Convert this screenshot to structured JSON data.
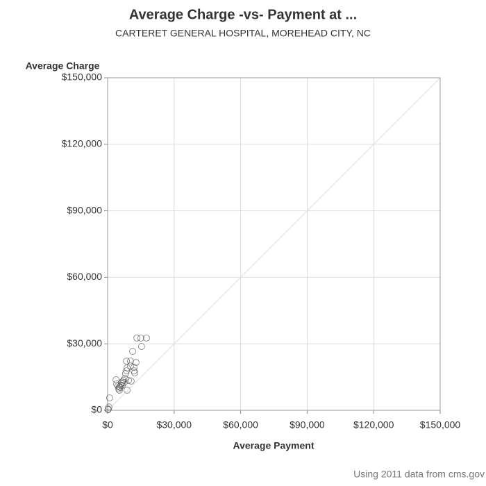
{
  "chart_data": {
    "type": "scatter",
    "title": "Average Charge -vs- Payment at ...",
    "subtitle": "CARTERET GENERAL HOSPITAL, MOREHEAD CITY, NC",
    "x_label": "Average Payment",
    "y_label": "Average Charge",
    "footnote": "Using 2011 data from cms.gov",
    "color": "#555555",
    "grid": true,
    "xlim": [
      0,
      150000
    ],
    "ylim": [
      0,
      150000
    ],
    "xticks": [
      {
        "value": 0,
        "label": "$0"
      },
      {
        "value": 30000,
        "label": "$30,000"
      },
      {
        "value": 60000,
        "label": "$60,000"
      },
      {
        "value": 90000,
        "label": "$90,000"
      },
      {
        "value": 120000,
        "label": "$120,000"
      },
      {
        "value": 150000,
        "label": "$150,000"
      }
    ],
    "yticks": [
      {
        "value": 0,
        "label": "$0"
      },
      {
        "value": 30000,
        "label": "$30,000"
      },
      {
        "value": 60000,
        "label": "$60,000"
      },
      {
        "value": 90000,
        "label": "$90,000"
      },
      {
        "value": 120000,
        "label": "$120,000"
      },
      {
        "value": 150000,
        "label": "$150,000"
      }
    ],
    "x": [
      200,
      300,
      600,
      900,
      3800,
      4700,
      5000,
      5300,
      5600,
      6000,
      6300,
      6600,
      7200,
      7800,
      8100,
      8500,
      8500,
      8800,
      9400,
      10300,
      10300,
      10600,
      11300,
      11900,
      12200,
      12800,
      13200,
      15000,
      15300,
      17500,
      4100,
      5300,
      6600,
      11900,
      7500,
      8800
    ],
    "values": [
      300,
      600,
      1500,
      5600,
      13800,
      11000,
      9700,
      9100,
      10300,
      11300,
      12200,
      12800,
      13500,
      14400,
      16600,
      17800,
      22200,
      9100,
      13500,
      20000,
      22200,
      13200,
      26600,
      19400,
      16900,
      21600,
      32600,
      32600,
      28800,
      32600,
      11900,
      10600,
      11300,
      17800,
      12500,
      19100
    ]
  }
}
